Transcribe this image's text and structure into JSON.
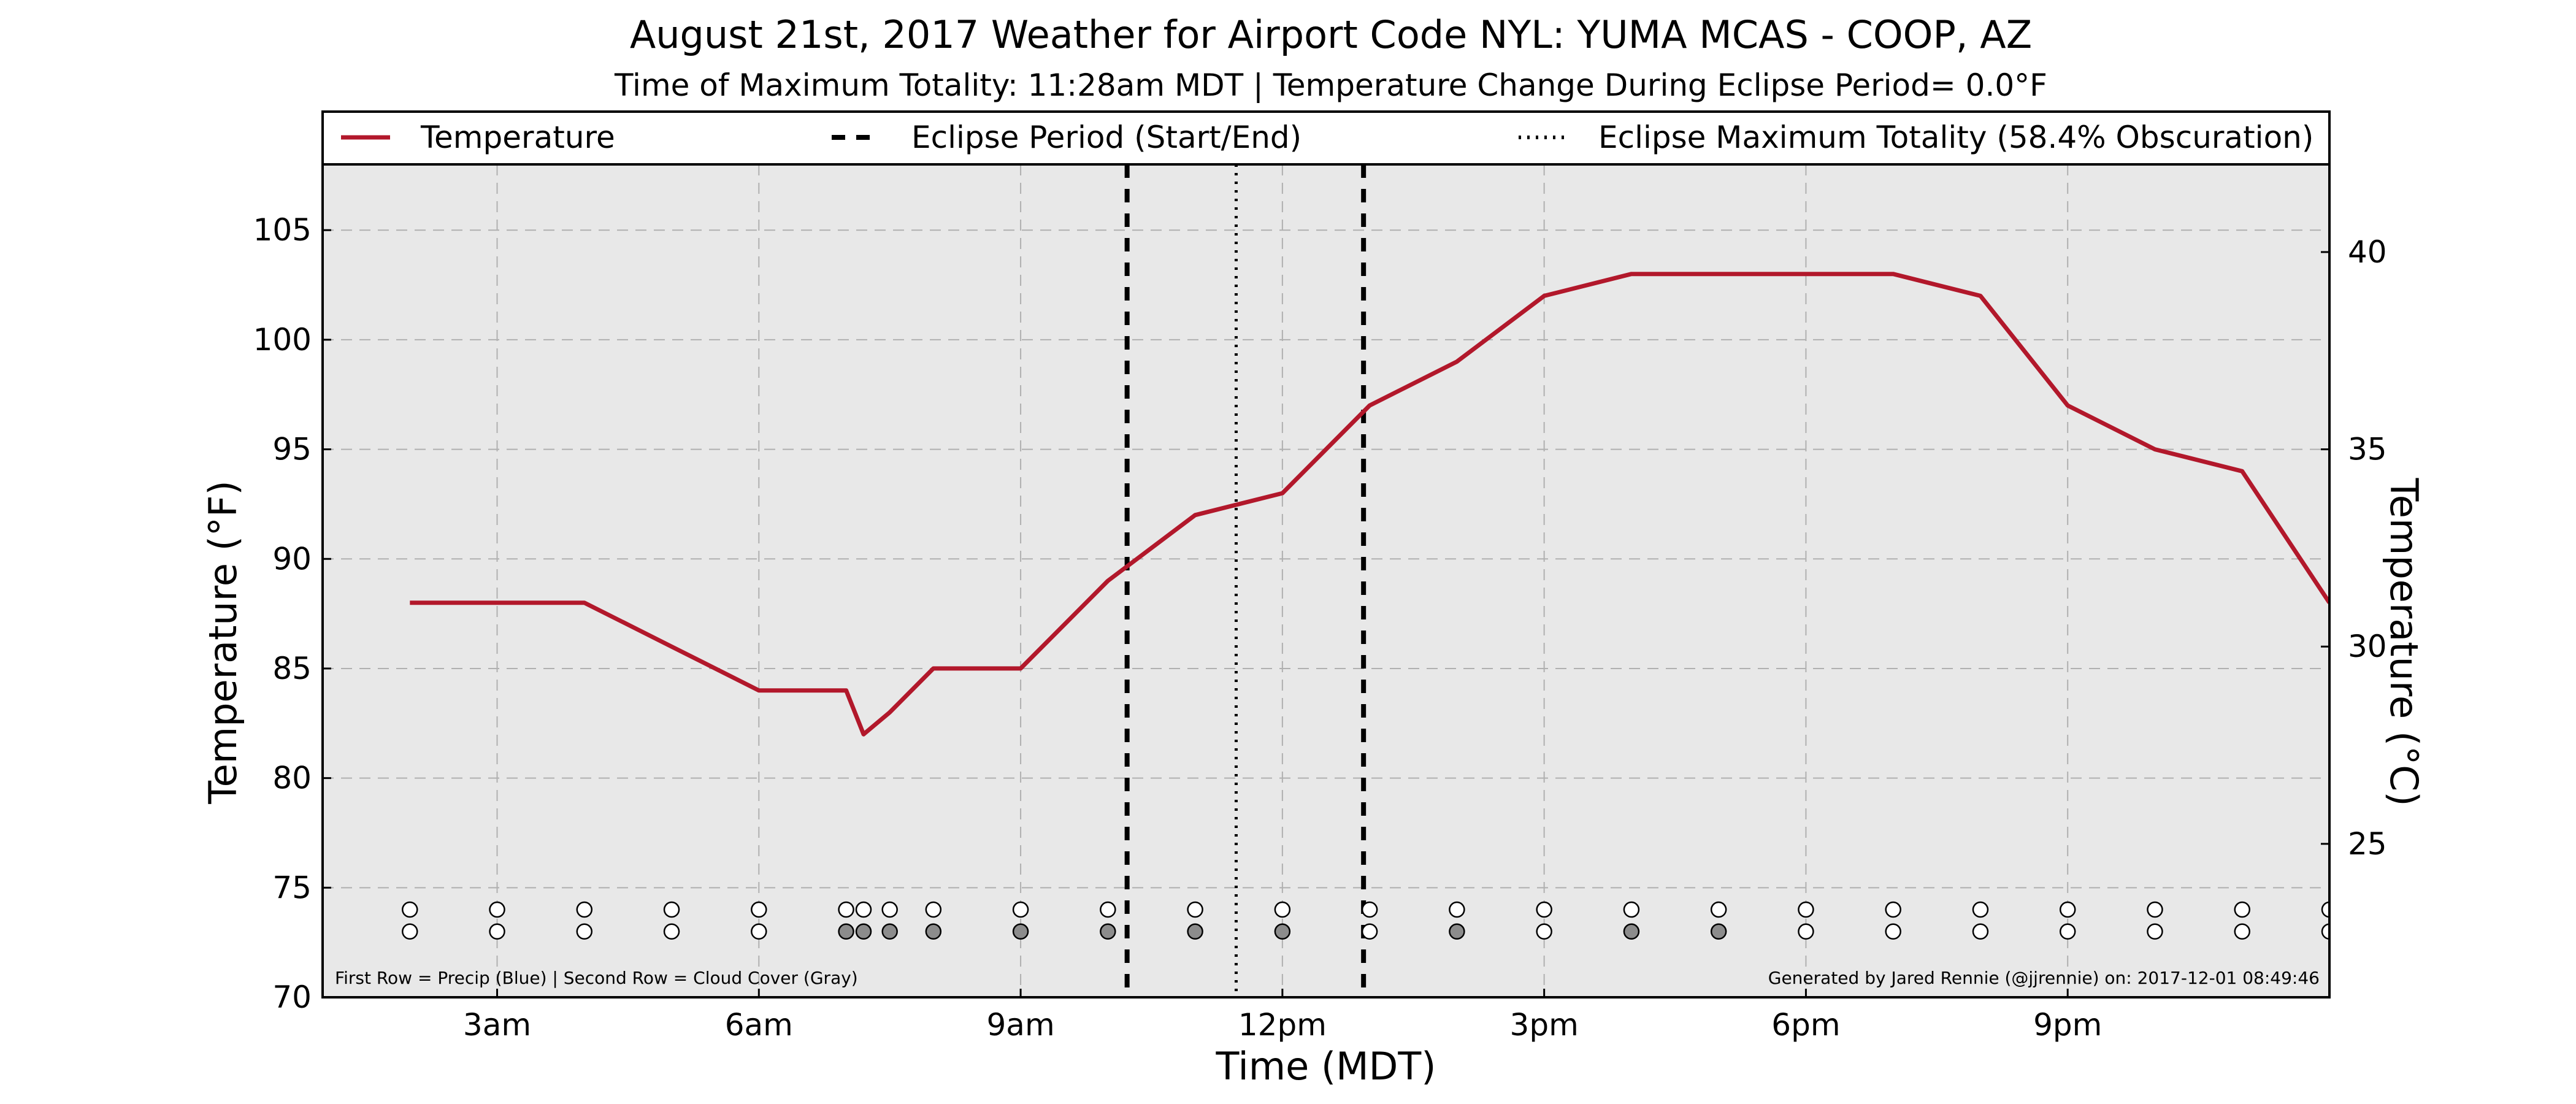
{
  "chart_data": {
    "type": "line",
    "title": "August 21st, 2017 Weather for Airport Code NYL: YUMA MCAS - COOP, AZ",
    "subtitle": "Time of Maximum Totality: 11:28am MDT | Temperature Change During Eclipse Period= 0.0°F",
    "xlabel": "Time (MDT)",
    "ylabel": "Temperature (°F)",
    "ylabel_right": "Temperature (°C)",
    "xlim": [
      1.0,
      24.0
    ],
    "ylim": [
      70,
      108
    ],
    "ylim_right_celsius": [
      21.11,
      42.22
    ],
    "grid": true,
    "x_ticks": [
      {
        "x": 3,
        "label": "3am"
      },
      {
        "x": 6,
        "label": "6am"
      },
      {
        "x": 9,
        "label": "9am"
      },
      {
        "x": 12,
        "label": "12pm"
      },
      {
        "x": 15,
        "label": "3pm"
      },
      {
        "x": 18,
        "label": "6pm"
      },
      {
        "x": 21,
        "label": "9pm"
      }
    ],
    "y_ticks": [
      {
        "y": 70,
        "label": "70"
      },
      {
        "y": 75,
        "label": "75"
      },
      {
        "y": 80,
        "label": "80"
      },
      {
        "y": 85,
        "label": "85"
      },
      {
        "y": 90,
        "label": "90"
      },
      {
        "y": 95,
        "label": "95"
      },
      {
        "y": 100,
        "label": "100"
      },
      {
        "y": 105,
        "label": "105"
      }
    ],
    "y_ticks_right": [
      {
        "c": 25,
        "label": "25"
      },
      {
        "c": 30,
        "label": "30"
      },
      {
        "c": 35,
        "label": "35"
      },
      {
        "c": 40,
        "label": "40"
      }
    ],
    "series": [
      {
        "name": "Temperature",
        "color": "#b2182b",
        "points": [
          {
            "x": 2.0,
            "y": 88
          },
          {
            "x": 3.0,
            "y": 88
          },
          {
            "x": 4.0,
            "y": 88
          },
          {
            "x": 5.0,
            "y": 86
          },
          {
            "x": 6.0,
            "y": 84
          },
          {
            "x": 7.0,
            "y": 84
          },
          {
            "x": 7.2,
            "y": 82
          },
          {
            "x": 7.5,
            "y": 83
          },
          {
            "x": 8.0,
            "y": 85
          },
          {
            "x": 9.0,
            "y": 85
          },
          {
            "x": 10.0,
            "y": 89
          },
          {
            "x": 11.0,
            "y": 92
          },
          {
            "x": 12.0,
            "y": 93
          },
          {
            "x": 13.0,
            "y": 97
          },
          {
            "x": 14.0,
            "y": 99
          },
          {
            "x": 15.0,
            "y": 102
          },
          {
            "x": 16.0,
            "y": 103
          },
          {
            "x": 17.0,
            "y": 103
          },
          {
            "x": 18.0,
            "y": 103
          },
          {
            "x": 19.0,
            "y": 103
          },
          {
            "x": 20.0,
            "y": 102
          },
          {
            "x": 21.0,
            "y": 97
          },
          {
            "x": 22.0,
            "y": 95
          },
          {
            "x": 23.0,
            "y": 94
          },
          {
            "x": 24.0,
            "y": 88
          }
        ]
      }
    ],
    "eclipse_start": 10.22,
    "eclipse_end": 12.93,
    "eclipse_max": 11.47,
    "legend": {
      "placement": "top",
      "entries": [
        {
          "label": "Temperature",
          "style": "solid",
          "color": "#b2182b"
        },
        {
          "label": "Eclipse Period (Start/End)",
          "style": "dashed",
          "color": "#000000"
        },
        {
          "label": "Eclipse Maximum Totality (58.4% Obscuration)",
          "style": "dotted",
          "color": "#000000"
        }
      ]
    },
    "obs_rows": {
      "precip_y": 74,
      "cloud_y": 73,
      "precip_points": [
        {
          "x": 2.0,
          "filled": false
        },
        {
          "x": 3.0,
          "filled": false
        },
        {
          "x": 4.0,
          "filled": false
        },
        {
          "x": 5.0,
          "filled": false
        },
        {
          "x": 6.0,
          "filled": false
        },
        {
          "x": 7.0,
          "filled": false
        },
        {
          "x": 7.2,
          "filled": false
        },
        {
          "x": 7.5,
          "filled": false
        },
        {
          "x": 8.0,
          "filled": false
        },
        {
          "x": 9.0,
          "filled": false
        },
        {
          "x": 10.0,
          "filled": false
        },
        {
          "x": 11.0,
          "filled": false
        },
        {
          "x": 12.0,
          "filled": false
        },
        {
          "x": 13.0,
          "filled": false
        },
        {
          "x": 14.0,
          "filled": false
        },
        {
          "x": 15.0,
          "filled": false
        },
        {
          "x": 16.0,
          "filled": false
        },
        {
          "x": 17.0,
          "filled": false
        },
        {
          "x": 18.0,
          "filled": false
        },
        {
          "x": 19.0,
          "filled": false
        },
        {
          "x": 20.0,
          "filled": false
        },
        {
          "x": 21.0,
          "filled": false
        },
        {
          "x": 22.0,
          "filled": false
        },
        {
          "x": 23.0,
          "filled": false
        },
        {
          "x": 24.0,
          "filled": false
        }
      ],
      "cloud_points": [
        {
          "x": 2.0,
          "filled": false
        },
        {
          "x": 3.0,
          "filled": false
        },
        {
          "x": 4.0,
          "filled": false
        },
        {
          "x": 5.0,
          "filled": false
        },
        {
          "x": 6.0,
          "filled": false
        },
        {
          "x": 7.0,
          "filled": true
        },
        {
          "x": 7.2,
          "filled": true
        },
        {
          "x": 7.5,
          "filled": true
        },
        {
          "x": 8.0,
          "filled": true
        },
        {
          "x": 9.0,
          "filled": true
        },
        {
          "x": 10.0,
          "filled": true
        },
        {
          "x": 11.0,
          "filled": true
        },
        {
          "x": 12.0,
          "filled": true
        },
        {
          "x": 13.0,
          "filled": false
        },
        {
          "x": 14.0,
          "filled": true
        },
        {
          "x": 15.0,
          "filled": false
        },
        {
          "x": 16.0,
          "filled": true
        },
        {
          "x": 17.0,
          "filled": true
        },
        {
          "x": 18.0,
          "filled": false
        },
        {
          "x": 19.0,
          "filled": false
        },
        {
          "x": 20.0,
          "filled": false
        },
        {
          "x": 21.0,
          "filled": false
        },
        {
          "x": 22.0,
          "filled": false
        },
        {
          "x": 23.0,
          "filled": false
        },
        {
          "x": 24.0,
          "filled": false
        }
      ]
    },
    "footnote_left": "First Row = Precip (Blue) | Second Row = Cloud Cover (Gray)",
    "footnote_right": "Generated by Jared Rennie (@jjrennie) on: 2017-12-01 08:49:46",
    "colors": {
      "plot_bg": "#e8e8e8",
      "grid": "#b0b0b0",
      "cloud_fill": "#8c8c8c",
      "empty_fill": "#ffffff"
    }
  }
}
